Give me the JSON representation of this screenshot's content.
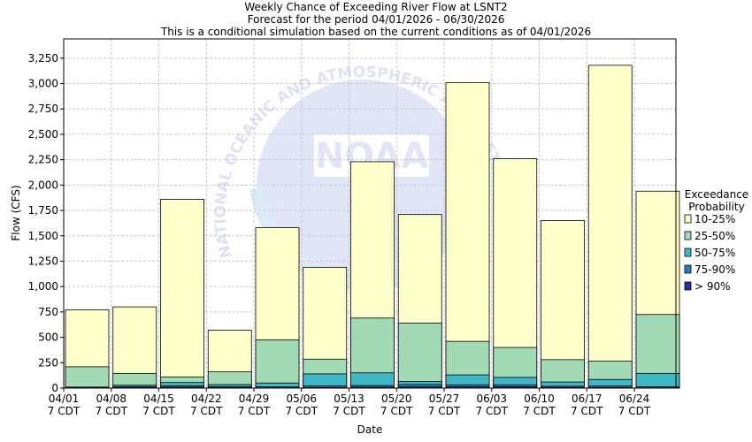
{
  "chart_data": {
    "type": "bar",
    "title_lines": [
      "Weekly Chance of Exceeding River Flow at LSNT2",
      "Forecast for the period 04/01/2026 - 06/30/2026",
      "This is a conditional simulation based on the current conditions as of 04/01/2026"
    ],
    "xlabel": "Date",
    "ylabel": "Flow (CFS)",
    "ylim": [
      0,
      3440
    ],
    "y_ticks": [
      {
        "value": 0,
        "label": "0"
      },
      {
        "value": 250,
        "label": "250"
      },
      {
        "value": 500,
        "label": "500"
      },
      {
        "value": 750,
        "label": "750"
      },
      {
        "value": 1000,
        "label": "1,000"
      },
      {
        "value": 1250,
        "label": "1,250"
      },
      {
        "value": 1500,
        "label": "1,500"
      },
      {
        "value": 1750,
        "label": "1,750"
      },
      {
        "value": 2000,
        "label": "2,000"
      },
      {
        "value": 2250,
        "label": "2,250"
      },
      {
        "value": 2500,
        "label": "2,500"
      },
      {
        "value": 2750,
        "label": "2,750"
      },
      {
        "value": 3000,
        "label": "3,000"
      },
      {
        "value": 3250,
        "label": "3,250"
      }
    ],
    "categories": [
      "04/01",
      "04/08",
      "04/15",
      "04/22",
      "04/29",
      "05/06",
      "05/13",
      "05/20",
      "05/27",
      "06/03",
      "06/10",
      "06/17",
      "06/24"
    ],
    "category_sublabel": "7 CDT",
    "grid": true,
    "legend": {
      "title_lines": [
        "Exceedance",
        "Probability"
      ],
      "placement": "right"
    },
    "series": [
      {
        "name": "10-25%",
        "color": "#ffffcc",
        "values": [
          770,
          800,
          1860,
          570,
          1580,
          1190,
          2230,
          1710,
          3010,
          2260,
          1650,
          3180,
          1940
        ]
      },
      {
        "name": "25-50%",
        "color": "#a1dab4",
        "values": [
          210,
          145,
          110,
          160,
          475,
          285,
          690,
          640,
          460,
          400,
          280,
          265,
          725
        ]
      },
      {
        "name": "50-75%",
        "color": "#41b6c4",
        "values": [
          10,
          28,
          55,
          35,
          50,
          140,
          150,
          65,
          130,
          105,
          60,
          85,
          145
        ]
      },
      {
        "name": "75-90%",
        "color": "#2c7fb8",
        "values": [
          4,
          15,
          22,
          15,
          12,
          22,
          25,
          35,
          32,
          32,
          18,
          20,
          12
        ]
      },
      {
        "name": "> 90%",
        "color": "#253494",
        "values": [
          1,
          4,
          8,
          4,
          3,
          6,
          8,
          12,
          12,
          14,
          6,
          6,
          3
        ]
      }
    ],
    "watermark_text": "NATIONAL OCEANIC AND ATMOSPHERIC ADMINISTRATION",
    "watermark_logo": "NOAA"
  }
}
